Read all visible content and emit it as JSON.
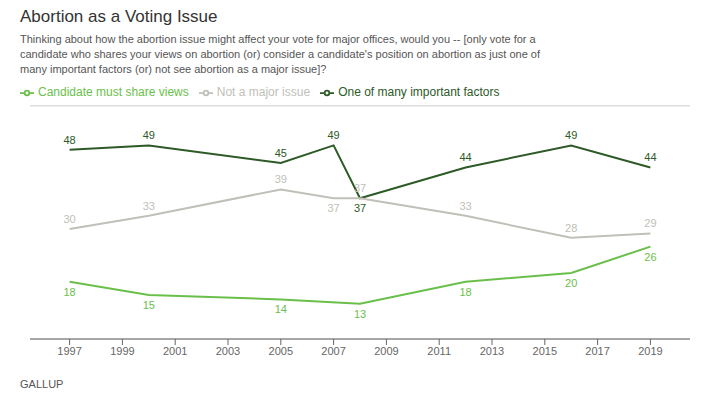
{
  "chart_data": {
    "type": "line",
    "title": "Abortion as a Voting Issue",
    "subtitle": "Thinking about how the abortion issue might affect your vote for major offices, would you -- [only vote for a\ncandidate who shares your views on abortion (or) consider a candidate's position on abortion as just one of\nmany important factors (or) not see abortion as a major issue]?",
    "annotations": [
      "GALLUP"
    ],
    "xlim": [
      1995.5,
      2020.5
    ],
    "xticks": [
      1997,
      1999,
      2001,
      2003,
      2005,
      2007,
      2009,
      2011,
      2013,
      2015,
      2017,
      2019
    ],
    "ylim": [
      5,
      58
    ],
    "tick_labels": "x",
    "grid": false,
    "legend": "top",
    "data_labels": true,
    "series": [
      {
        "name": "Candidate must share views",
        "color": "#6abf4b",
        "x": [
          1997,
          2000,
          2005,
          2008,
          2012,
          2016,
          2019
        ],
        "values": [
          18,
          15,
          14,
          13,
          18,
          20,
          26
        ]
      },
      {
        "name": "One of many important factors",
        "color": "#2d5a27",
        "x": [
          1997,
          2000,
          2005,
          2007,
          2008,
          2012,
          2016,
          2019
        ],
        "values": [
          48,
          49,
          45,
          49,
          37,
          44,
          49,
          44
        ]
      },
      {
        "name": "Not a major issue",
        "color": "#c0c0b8",
        "x": [
          1997,
          2000,
          2005,
          2007,
          2008,
          2012,
          2016,
          2019
        ],
        "values": [
          30,
          33,
          39,
          37,
          37,
          33,
          28,
          29
        ]
      }
    ]
  }
}
